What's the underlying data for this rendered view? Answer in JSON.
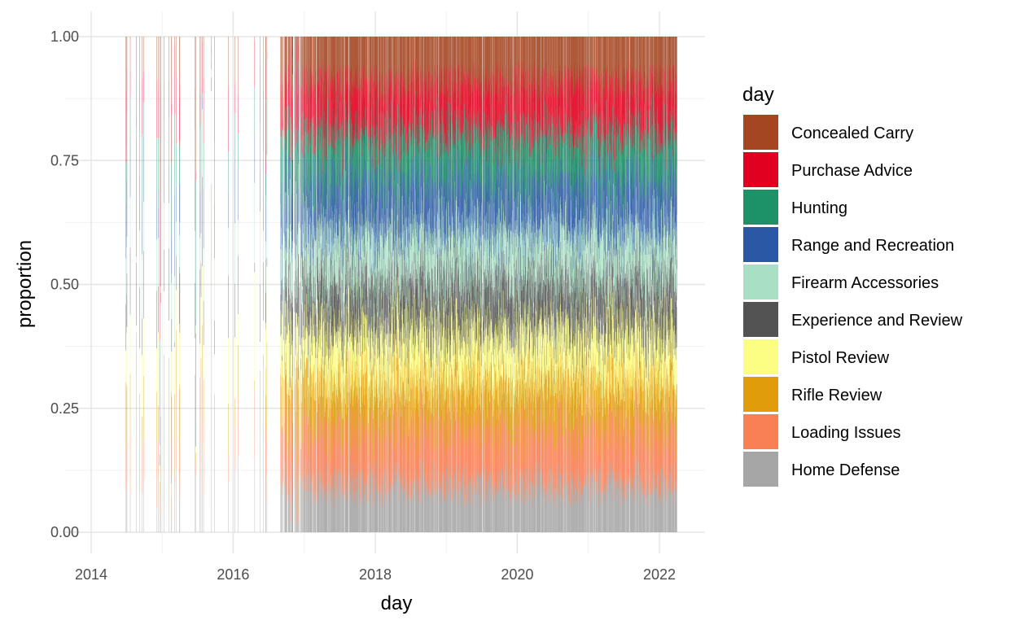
{
  "chart_data": {
    "type": "bar",
    "stacked": true,
    "position": "fill",
    "xlabel": "day",
    "ylabel": "proportion",
    "x_ticks": [
      "2014",
      "2016",
      "2018",
      "2020",
      "2022"
    ],
    "y_ticks": [
      "0.00",
      "0.25",
      "0.50",
      "0.75",
      "1.00"
    ],
    "xlim": [
      "2014-01-01",
      "2022-07-01"
    ],
    "ylim": [
      0,
      1
    ],
    "grid": true,
    "legend": {
      "title": "day",
      "placement": "right"
    },
    "series": [
      {
        "name": "Home Defense",
        "color": "#a6a6a6",
        "typical_share": 0.095
      },
      {
        "name": "Loading Issues",
        "color": "#f97f55",
        "typical_share": 0.11
      },
      {
        "name": "Rifle Review",
        "color": "#e09c0b",
        "typical_share": 0.1
      },
      {
        "name": "Pistol Review",
        "color": "#fcfe84",
        "typical_share": 0.1
      },
      {
        "name": "Experience and Review",
        "color": "#535353",
        "typical_share": 0.1
      },
      {
        "name": "Firearm Accessories",
        "color": "#a9dfc4",
        "typical_share": 0.1
      },
      {
        "name": "Range and Recreation",
        "color": "#2b58a4",
        "typical_share": 0.1
      },
      {
        "name": "Hunting",
        "color": "#1d9268",
        "typical_share": 0.1
      },
      {
        "name": "Purchase Advice",
        "color": "#e1001f",
        "typical_share": 0.1
      },
      {
        "name": "Concealed Carry",
        "color": "#a54622",
        "typical_share": 0.095
      }
    ],
    "data_density": {
      "first_day": "2014-05-01",
      "last_day": "2022-04-01",
      "sparse_until": "2016-09-01",
      "dense_from": "2017-01-01"
    }
  }
}
